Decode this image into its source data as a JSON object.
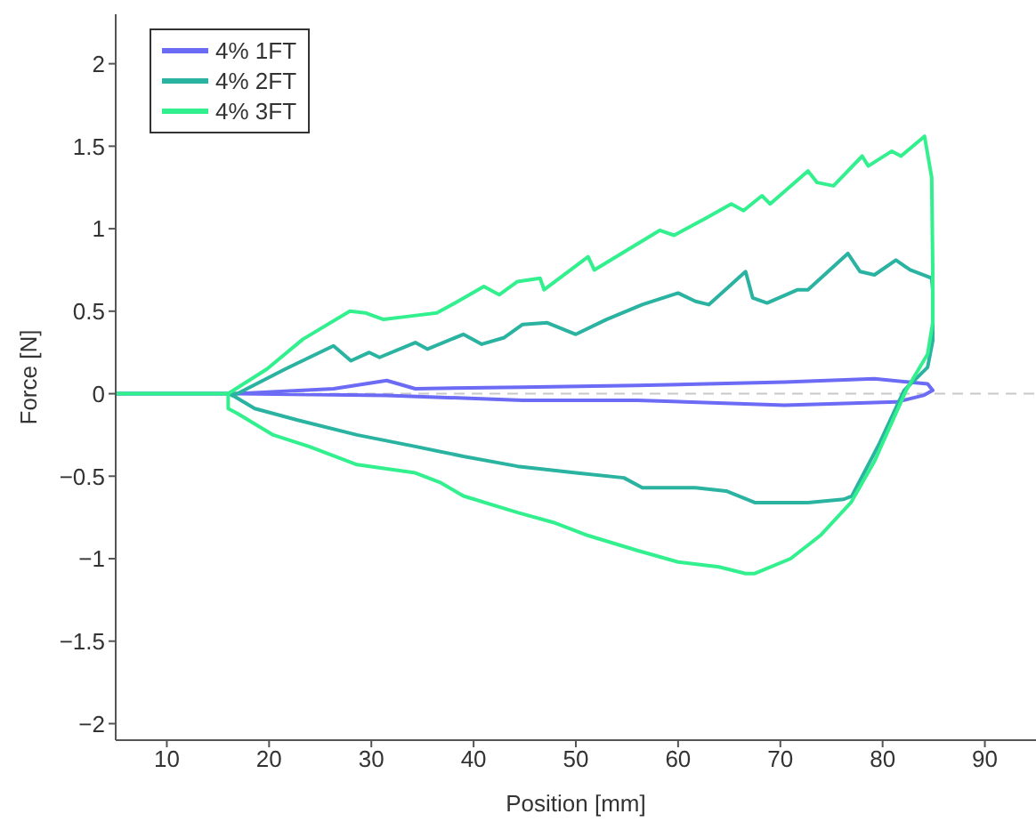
{
  "chart_data": {
    "type": "line",
    "xlabel": "Position [mm]",
    "ylabel": "Force [N]",
    "xlim": [
      5,
      95
    ],
    "xticks": [
      10,
      20,
      30,
      40,
      50,
      60,
      70,
      80,
      90
    ],
    "ylim": [
      -2.1,
      2.3
    ],
    "yticks": [
      {
        "value": -2,
        "label": "−2"
      },
      {
        "value": -1.5,
        "label": "−1.5"
      },
      {
        "value": -1,
        "label": "−1"
      },
      {
        "value": -0.5,
        "label": "−0.5"
      },
      0,
      0.5,
      1,
      1.5,
      2
    ],
    "grid": false,
    "legend": "top left",
    "line_style": "solid",
    "marker": "none",
    "ref_lines": [
      {
        "axis": "y",
        "value": 0,
        "color": "#c8c8c8",
        "line_style": "dashed"
      }
    ],
    "series": [
      {
        "name": "4% 1FT",
        "color": "#6b6bf5",
        "x": [
          5,
          16,
          16.9,
          26.3,
          31.5,
          34.3,
          44.8,
          56,
          70.4,
          79.2,
          84.4,
          84.9,
          84,
          81.4,
          70.4,
          56,
          44.8,
          31.5,
          16.9,
          16
        ],
        "values": [
          0,
          0,
          0,
          0.03,
          0.08,
          0.03,
          0.04,
          0.05,
          0.07,
          0.09,
          0.06,
          0.02,
          -0.01,
          -0.05,
          -0.07,
          -0.04,
          -0.04,
          -0.01,
          0,
          0
        ]
      },
      {
        "name": "4% 2FT",
        "color": "#2ab3a0",
        "x": [
          5,
          16,
          16.9,
          21.6,
          26.3,
          28,
          29.8,
          30.8,
          34.3,
          35.5,
          39,
          40.8,
          43,
          44.8,
          47.2,
          50,
          53,
          56.5,
          60,
          61.7,
          63,
          66.6,
          67.3,
          68.7,
          71.7,
          72.7,
          76.6,
          77.8,
          79.2,
          81.3,
          82.7,
          84.8,
          84.9,
          84.9,
          84.4,
          82.1,
          79.7,
          77,
          76.2,
          72.7,
          67.5,
          64.7,
          61.7,
          56.5,
          54.7,
          50,
          44.3,
          39,
          34.3,
          28.6,
          22.8,
          18.6,
          16.7,
          16
        ],
        "values": [
          0,
          0,
          0,
          0.15,
          0.29,
          0.2,
          0.25,
          0.22,
          0.31,
          0.27,
          0.36,
          0.3,
          0.34,
          0.42,
          0.43,
          0.36,
          0.45,
          0.54,
          0.61,
          0.56,
          0.54,
          0.74,
          0.58,
          0.55,
          0.63,
          0.63,
          0.85,
          0.74,
          0.72,
          0.81,
          0.75,
          0.7,
          0.63,
          0.32,
          0.16,
          0.02,
          -0.3,
          -0.62,
          -0.64,
          -0.66,
          -0.66,
          -0.59,
          -0.57,
          -0.57,
          -0.51,
          -0.48,
          -0.44,
          -0.38,
          -0.32,
          -0.25,
          -0.16,
          -0.09,
          -0.02,
          0
        ]
      },
      {
        "name": "4% 3FT",
        "color": "#33f08f",
        "x": [
          5,
          16,
          19.8,
          23.3,
          27.9,
          29.4,
          31.2,
          33.8,
          36.4,
          38.2,
          41,
          42.5,
          44.3,
          46.5,
          46.9,
          51.2,
          51.8,
          58.2,
          59.6,
          62.6,
          65.2,
          66.4,
          68.2,
          69,
          72.7,
          73.6,
          75.2,
          78,
          78.6,
          80.9,
          81.8,
          84.1,
          84.8,
          84.9,
          84.9,
          84.4,
          82.3,
          79.2,
          76.9,
          73.9,
          71,
          67.5,
          66.6,
          64,
          60,
          56,
          51.2,
          47.8,
          44.3,
          39,
          36.8,
          34.3,
          28.6,
          23.9,
          20.4,
          16.9,
          16,
          16,
          16
        ],
        "values": [
          0,
          0,
          0.15,
          0.33,
          0.5,
          0.49,
          0.45,
          0.47,
          0.49,
          0.55,
          0.65,
          0.6,
          0.68,
          0.7,
          0.63,
          0.83,
          0.75,
          0.99,
          0.96,
          1.06,
          1.15,
          1.11,
          1.2,
          1.15,
          1.35,
          1.28,
          1.26,
          1.44,
          1.38,
          1.47,
          1.44,
          1.56,
          1.31,
          0.77,
          0.43,
          0.24,
          0.02,
          -0.41,
          -0.66,
          -0.86,
          -1,
          -1.09,
          -1.09,
          -1.05,
          -1.02,
          -0.95,
          -0.86,
          -0.78,
          -0.72,
          -0.62,
          -0.54,
          -0.48,
          -0.43,
          -0.32,
          -0.25,
          -0.12,
          -0.09,
          -0.03,
          0
        ]
      }
    ]
  }
}
